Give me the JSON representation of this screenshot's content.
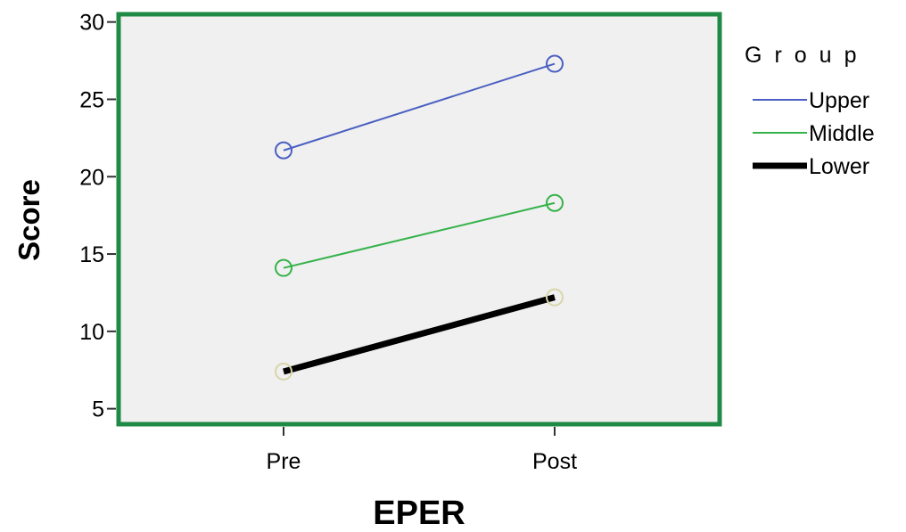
{
  "chart_data": {
    "type": "line",
    "categories": [
      "Pre",
      "Post"
    ],
    "series": [
      {
        "name": "Upper",
        "values": [
          21.7,
          27.3
        ],
        "color": "#4a5fc1",
        "marker_color": "#4a5fc1",
        "line_weight": "thin"
      },
      {
        "name": "Middle",
        "values": [
          14.1,
          18.3
        ],
        "color": "#35b24a",
        "marker_color": "#35b24a",
        "line_weight": "thin"
      },
      {
        "name": "Lower",
        "values": [
          7.4,
          12.2
        ],
        "color": "#000000",
        "marker_color": "#d8d6a8",
        "line_weight": "thick"
      }
    ],
    "xlabel": "EPER",
    "ylabel": "Score",
    "ylim": [
      4,
      30.5
    ],
    "yticks": [
      5,
      10,
      15,
      20,
      25,
      30
    ],
    "legend": {
      "title": "Group",
      "placement": "right"
    },
    "grid": false,
    "plot_background": "#f0f0f0",
    "frame_color": "#1f8a45",
    "marker": "hollow-circle"
  }
}
